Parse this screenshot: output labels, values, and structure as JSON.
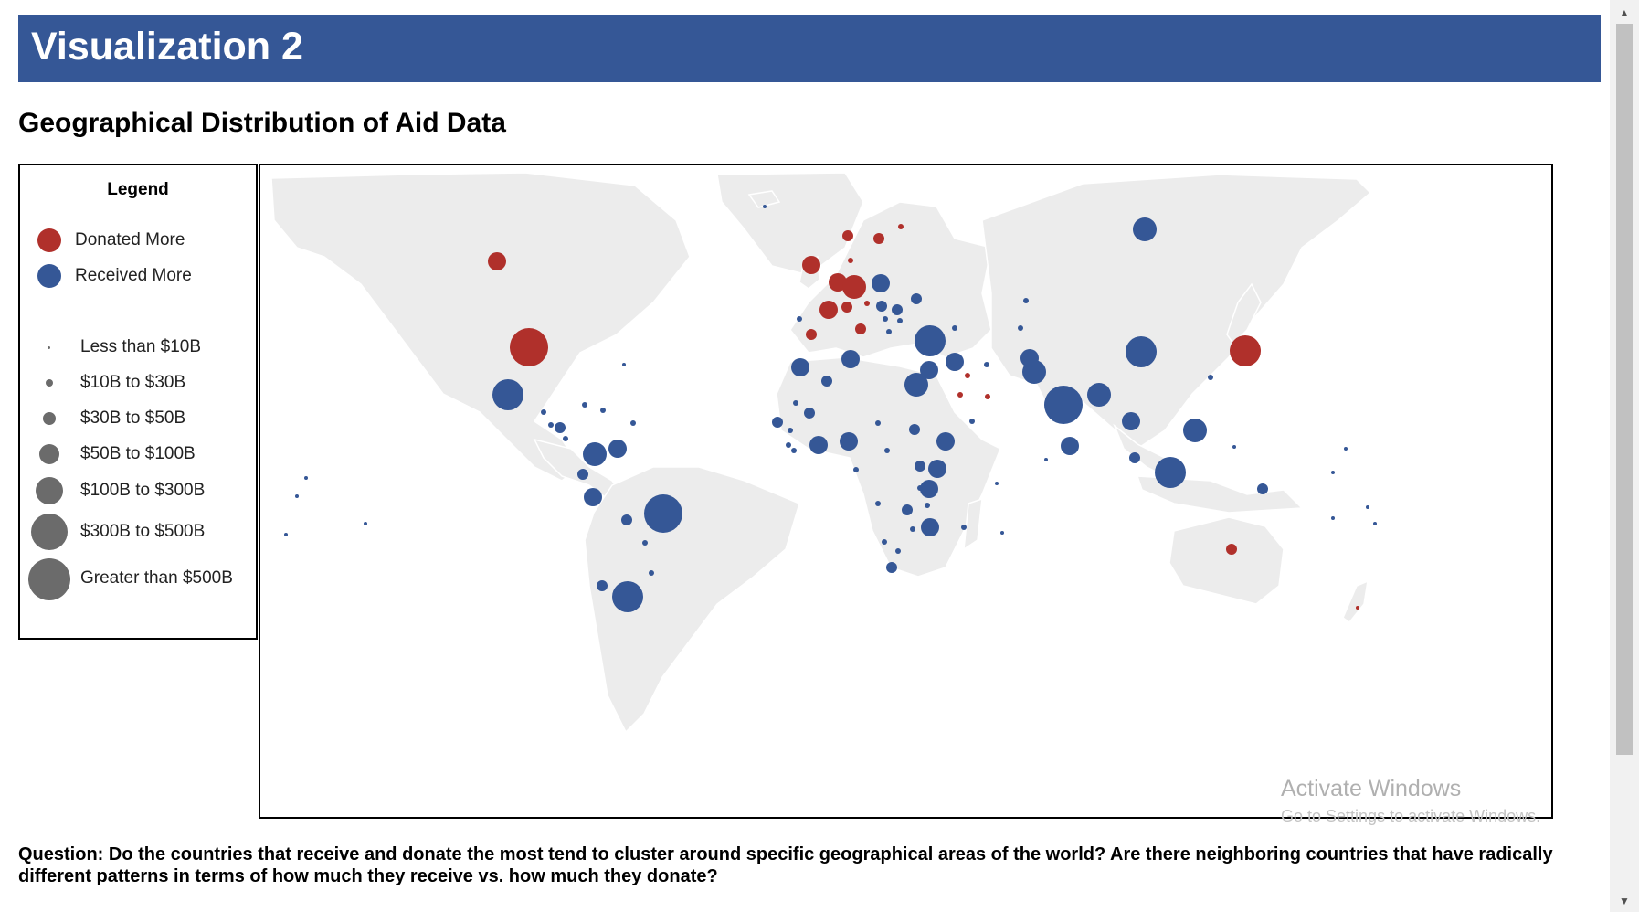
{
  "banner": {
    "title": "Visualization 2"
  },
  "section": {
    "title": "Geographical Distribution of Aid Data"
  },
  "legend": {
    "title": "Legend",
    "categories": [
      {
        "label": "Donated More",
        "color": "#b0302b"
      },
      {
        "label": "Received More",
        "color": "#355796"
      }
    ],
    "sizes": [
      {
        "label": "Less than $10B"
      },
      {
        "label": "$10B to $30B"
      },
      {
        "label": "$30B to $50B"
      },
      {
        "label": "$50B to $100B"
      },
      {
        "label": "$100B to $300B"
      },
      {
        "label": "$300B to $500B"
      },
      {
        "label": "Greater than $500B"
      }
    ],
    "size_color": "#6b6b6b"
  },
  "map": {
    "land_color": "#ececec",
    "border_color": "#ffffff"
  },
  "question": {
    "text": "Question: Do the countries that receive and donate the most tend to cluster around specific geographical areas of the world? Are there neighboring countries that have radically different patterns in terms of how much they receive vs. how much they donate?"
  },
  "watermark": {
    "title": "Activate Windows",
    "subtitle": "Go to Settings to activate Windows."
  }
}
